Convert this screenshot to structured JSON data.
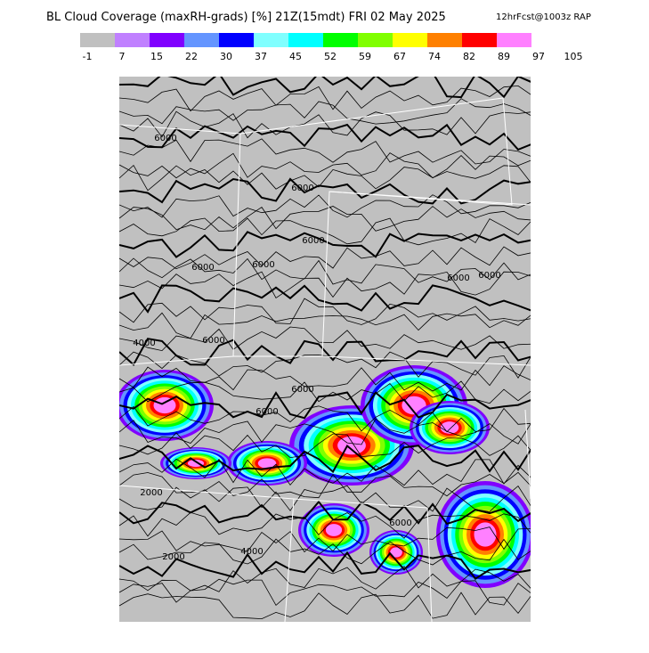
{
  "header": {
    "title": "BL Cloud Coverage (maxRH-grads) [%] 21Z(15mdt) FRI 02 May 2025",
    "subtitle": "12hrFcst@1003z RAP"
  },
  "colorbar": {
    "colors": [
      "#c0c0c0",
      "#c080ff",
      "#8000ff",
      "#6495ff",
      "#0000ff",
      "#80ffff",
      "#00ffff",
      "#00ff00",
      "#80ff00",
      "#ffff00",
      "#ff8000",
      "#ff0000",
      "#ff80ff"
    ],
    "labels": [
      -1,
      7,
      15,
      22,
      30,
      37,
      45,
      52,
      59,
      67,
      74,
      82,
      89,
      97,
      105
    ]
  },
  "contour_labels": [
    "6000",
    "6000",
    "6000",
    "6000",
    "6000",
    "6000",
    "6000",
    "4000",
    "6000",
    "6000",
    "6000",
    "2000",
    "2000",
    "4000",
    "6000"
  ]
}
